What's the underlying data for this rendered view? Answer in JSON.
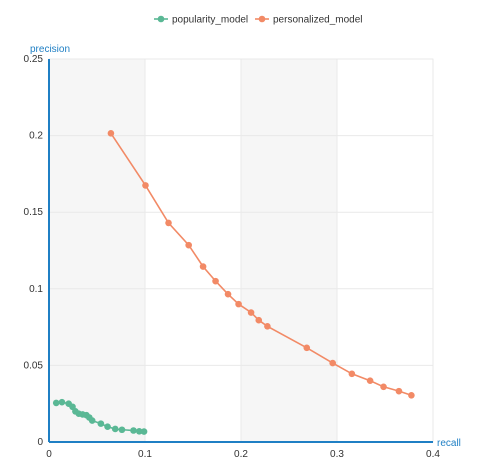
{
  "chart_data": {
    "type": "line",
    "xlabel": "recall",
    "ylabel": "precision",
    "xlim": [
      0,
      0.4
    ],
    "ylim": [
      0,
      0.25
    ],
    "x_ticks": [
      "0",
      "0.1",
      "0.2",
      "0.3",
      "0.4"
    ],
    "y_ticks": [
      "0",
      "0.05",
      "0.1",
      "0.15",
      "0.2",
      "0.25"
    ],
    "grid": true,
    "legend_position": "top-center",
    "axis_color": "#1f7fc4",
    "series": [
      {
        "name": "popularity_model",
        "color": "#5ab895",
        "points": [
          [
            0.0075,
            0.0255
          ],
          [
            0.0135,
            0.026
          ],
          [
            0.0205,
            0.025
          ],
          [
            0.0245,
            0.023
          ],
          [
            0.0275,
            0.02
          ],
          [
            0.031,
            0.0185
          ],
          [
            0.035,
            0.018
          ],
          [
            0.039,
            0.0175
          ],
          [
            0.042,
            0.016
          ],
          [
            0.045,
            0.014
          ],
          [
            0.054,
            0.012
          ],
          [
            0.061,
            0.01
          ],
          [
            0.069,
            0.0085
          ],
          [
            0.076,
            0.008
          ],
          [
            0.088,
            0.0075
          ],
          [
            0.094,
            0.007
          ],
          [
            0.099,
            0.0068
          ]
        ]
      },
      {
        "name": "personalized_model",
        "color": "#f28a66",
        "points": [
          [
            0.0645,
            0.2015
          ],
          [
            0.1005,
            0.1675
          ],
          [
            0.1245,
            0.143
          ],
          [
            0.1455,
            0.1285
          ],
          [
            0.1605,
            0.1145
          ],
          [
            0.1735,
            0.105
          ],
          [
            0.1865,
            0.0965
          ],
          [
            0.1975,
            0.09
          ],
          [
            0.2105,
            0.0845
          ],
          [
            0.2185,
            0.0795
          ],
          [
            0.2275,
            0.0755
          ],
          [
            0.2685,
            0.0615
          ],
          [
            0.2955,
            0.0515
          ],
          [
            0.3155,
            0.0445
          ],
          [
            0.3345,
            0.04
          ],
          [
            0.3485,
            0.036
          ],
          [
            0.3645,
            0.0332
          ],
          [
            0.3775,
            0.0305
          ]
        ]
      }
    ]
  }
}
